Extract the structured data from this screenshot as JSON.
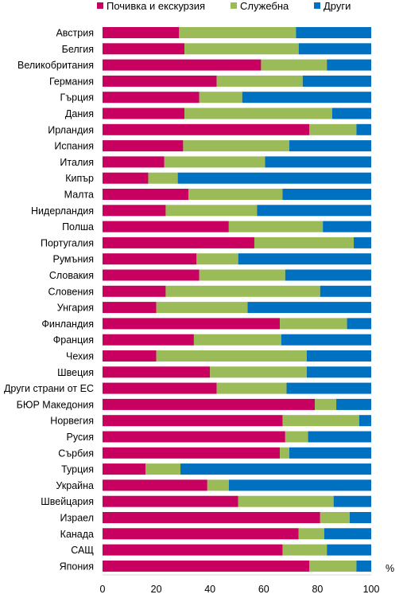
{
  "chart_data": {
    "type": "bar",
    "stacked": true,
    "orientation": "horizontal",
    "percent_stacked": true,
    "legend_position": "top",
    "grid": false,
    "xlim": [
      0,
      100
    ],
    "x_ticks": [
      "0",
      "20",
      "40",
      "60",
      "80",
      "100"
    ],
    "x_unit": "%",
    "categories": [
      "Австрия",
      "Белгия",
      "Великобритания",
      "Германия",
      "Гърция",
      "Дания",
      "Ирландия",
      "Испания",
      "Италия",
      "Кипър",
      "Малта",
      "Нидерландия",
      "Полша",
      "Португалия",
      "Румъния",
      "Словакия",
      "Словения",
      "Унгария",
      "Финландия",
      "Франция",
      "Чехия",
      "Швеция",
      "Други страни от ЕС",
      "БЮР Македония",
      "Норвегия",
      "Русия",
      "Сърбия",
      "Турция",
      "Украйна",
      "Швейцария",
      "Израел",
      "Канада",
      "САЩ",
      "Япония"
    ],
    "series": [
      {
        "name": "Почивка и екскурзия",
        "color": "#C8005F",
        "values": [
          28.5,
          30.5,
          59,
          42.5,
          36,
          30.5,
          77,
          30,
          23,
          17,
          32,
          23.5,
          47,
          56.5,
          35,
          36,
          23.5,
          20,
          66,
          34,
          20,
          40,
          42.5,
          79,
          67,
          68,
          66,
          16,
          39,
          50.5,
          81,
          73,
          67,
          77
        ]
      },
      {
        "name": "Служебна",
        "color": "#9BBB59",
        "values": [
          43.5,
          42.5,
          24.5,
          32,
          16,
          55,
          17.5,
          39.5,
          37.5,
          11,
          35,
          34,
          35,
          37,
          15.5,
          32,
          57.5,
          34,
          25,
          32.5,
          56,
          36,
          26,
          8,
          28.5,
          8.5,
          3.5,
          13,
          8,
          35.5,
          11,
          9.5,
          16.5,
          17.5
        ]
      },
      {
        "name": "Други",
        "color": "#0070C0",
        "values": [
          28,
          27,
          16.5,
          25.5,
          48,
          14.5,
          5.5,
          30.5,
          39.5,
          72,
          33,
          42.5,
          18,
          6.5,
          49.5,
          32,
          19,
          46,
          9,
          33.5,
          24,
          24,
          31.5,
          13,
          4.5,
          23.5,
          30.5,
          71,
          53,
          14,
          8,
          17.5,
          16.5,
          5.5
        ]
      }
    ]
  }
}
